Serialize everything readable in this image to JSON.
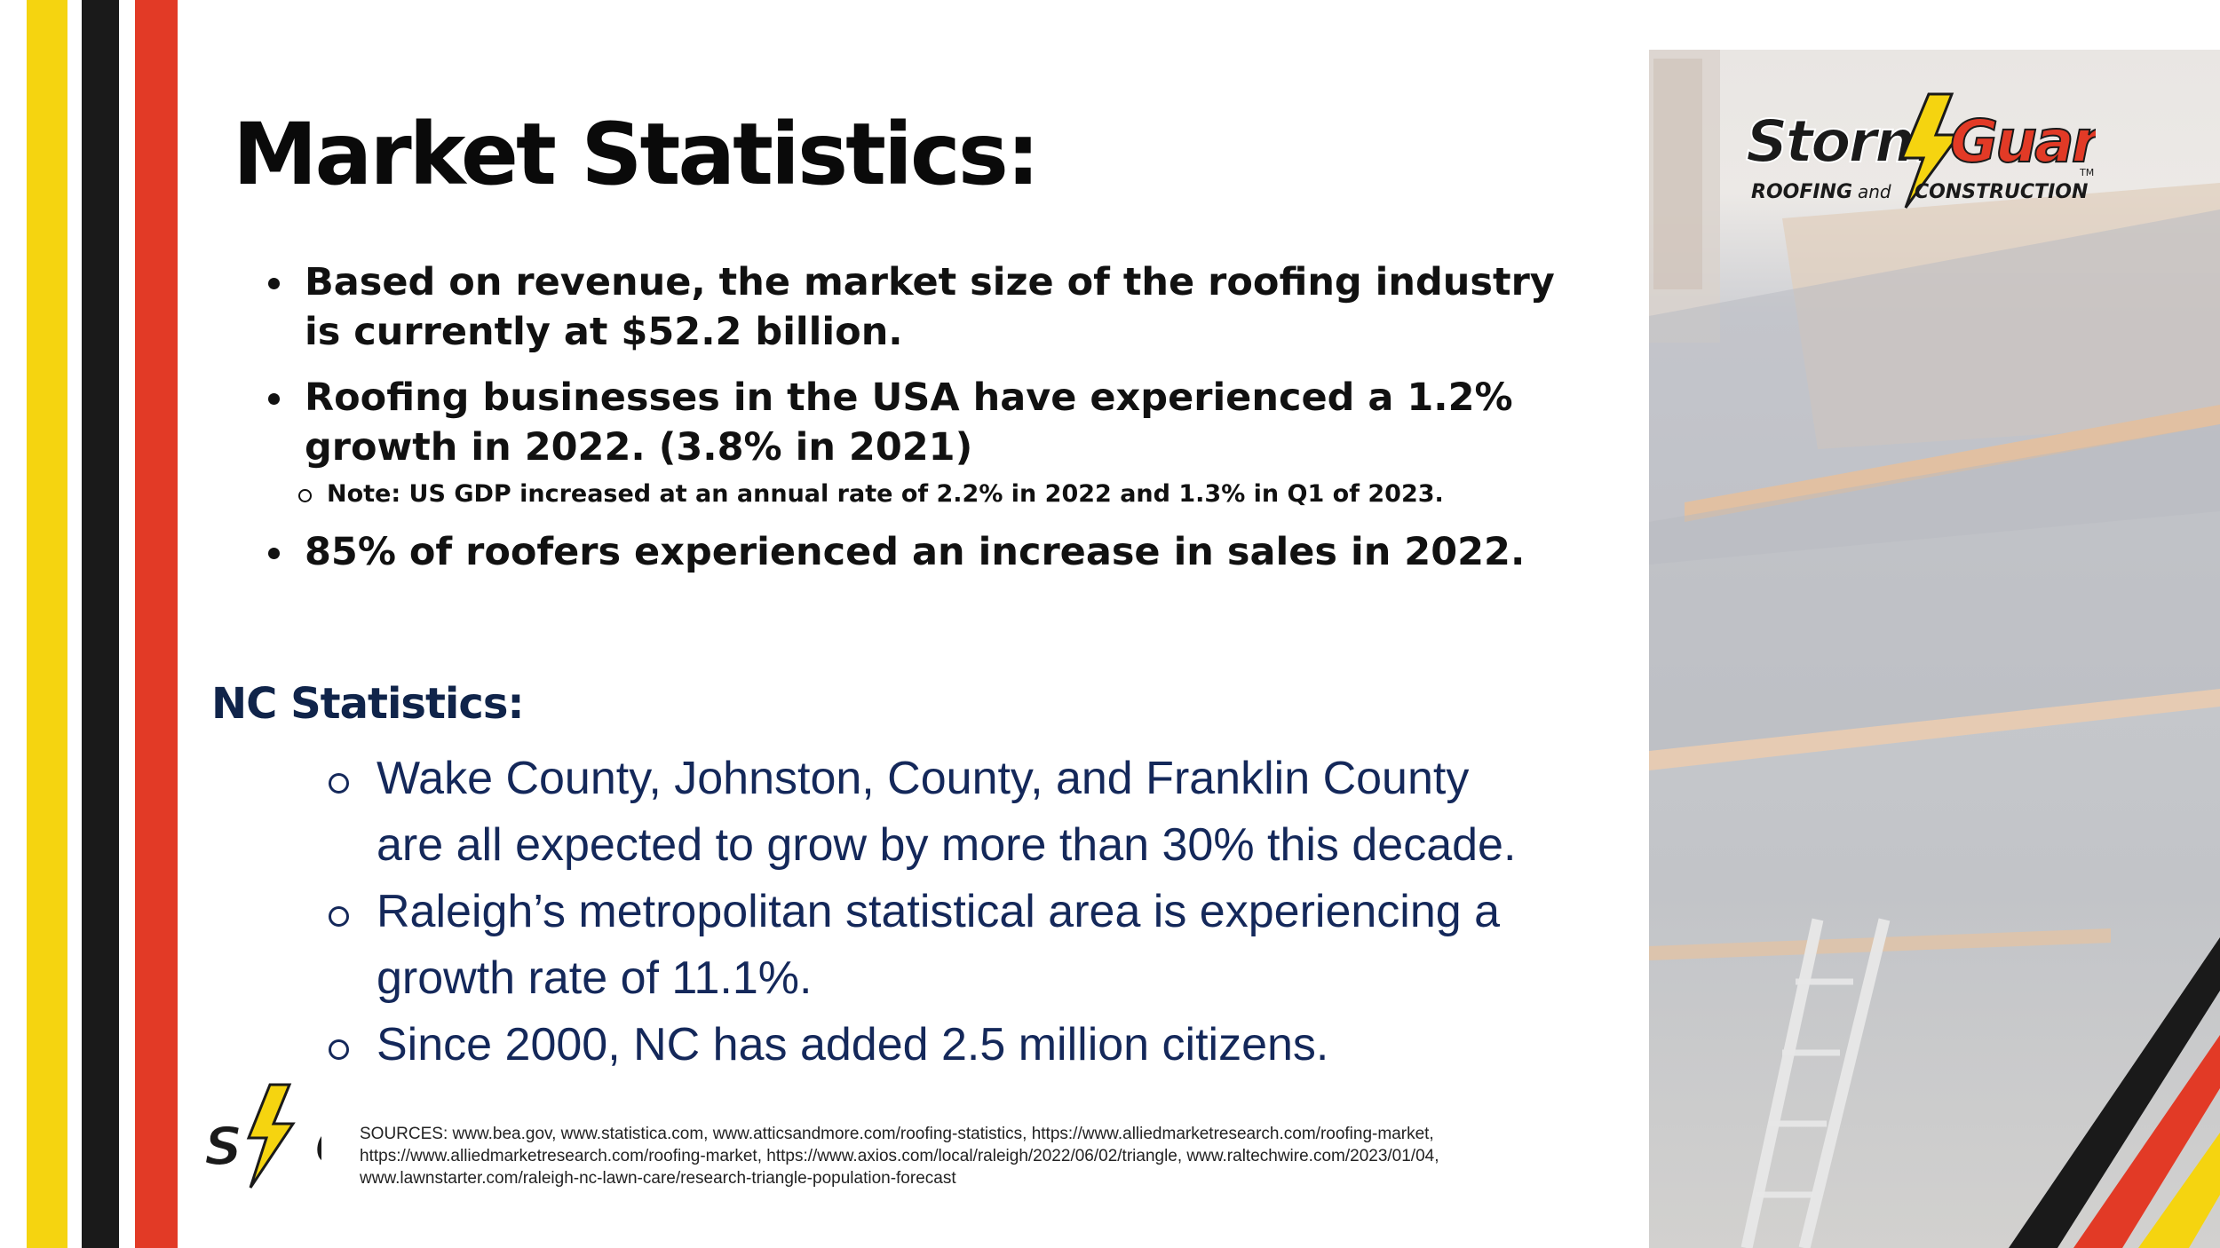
{
  "title": "Market Statistics:",
  "market_stats": {
    "bullet1": "Based on revenue, the market size of the roofing industry is currently at $52.2 billion.",
    "bullet2": "Roofing businesses in the USA have experienced a 1.2% growth in 2022. (3.8% in 2021)",
    "note": "Note: US GDP increased at an annual rate of 2.2% in 2022 and 1.3% in Q1 of 2023.",
    "bullet3": "85% of roofers experienced an increase in sales in 2022."
  },
  "nc_stats": {
    "heading": "NC Statistics:",
    "item1": "Wake County, Johnston, County, and Franklin County are all expected to grow by more than 30% this decade.",
    "item2": "Raleigh’s metropolitan statistical area is experiencing a  growth rate of 11.1%.",
    "item3": "Since 2000, NC has added 2.5 million citizens."
  },
  "sources": "SOURCES: www.bea.gov,  www.statistica.com,  www.atticsandmore.com/roofing-statistics, https://www.alliedmarketresearch.com/roofing-market, https://www.alliedmarketresearch.com/roofing-market, https://www.axios.com/local/raleigh/2022/06/02/triangle, www.raltechwire.com/2023/01/04, www.lawnstarter.com/raleigh-nc-lawn-care/research-triangle-population-forecast",
  "logo": {
    "word1": "Storm",
    "word2": "Guard",
    "tagline_left": "ROOFING",
    "tagline_and": "and",
    "tagline_right": "CONSTRUCTION",
    "trademark": "TM",
    "icon": "lightning-bolt-icon",
    "small_logo_text": "S G"
  },
  "colors": {
    "yellow": "#f5d410",
    "black": "#1a1a1a",
    "red": "#e23a26",
    "navy": "#10244a"
  }
}
